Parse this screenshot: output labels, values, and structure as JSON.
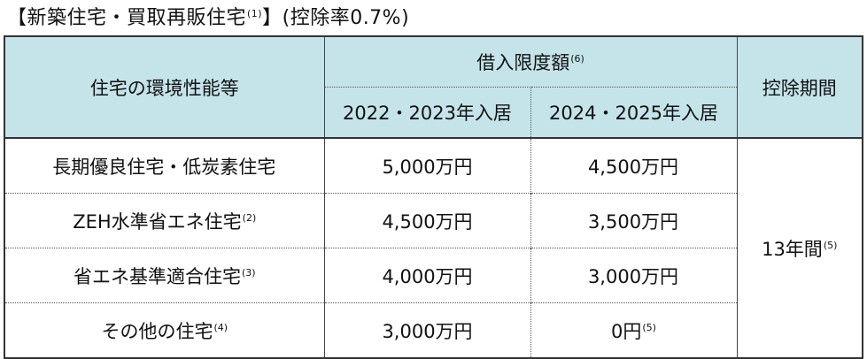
{
  "heading": {
    "prefix": "【新築住宅・買取再販住宅",
    "note": "(1)",
    "suffix": "】(控除率0.7%)"
  },
  "table": {
    "header": {
      "col1": "住宅の環境性能等",
      "group": "借入限度額",
      "group_note": "(6)",
      "col2": "2022・2023年入居",
      "col3": "2024・2025年入居",
      "col4": "控除期間"
    },
    "rows": [
      {
        "label": "長期優良住宅・低炭素住宅",
        "note": "",
        "v2022": "5,000万円",
        "v2024": "4,500万円",
        "v2024_note": ""
      },
      {
        "label": "ZEH水準省エネ住宅",
        "note": "(2)",
        "v2022": "4,500万円",
        "v2024": "3,500万円",
        "v2024_note": ""
      },
      {
        "label": "省エネ基準適合住宅",
        "note": "(3)",
        "v2022": "4,000万円",
        "v2024": "3,000万円",
        "v2024_note": ""
      },
      {
        "label": "その他の住宅",
        "note": "(4)",
        "v2022": "3,000万円",
        "v2024": "0円",
        "v2024_note": "(5)"
      }
    ],
    "period": "13年間",
    "period_note": "(5)"
  },
  "colors": {
    "header_bg": "#c4e4ea",
    "border": "#333333"
  }
}
